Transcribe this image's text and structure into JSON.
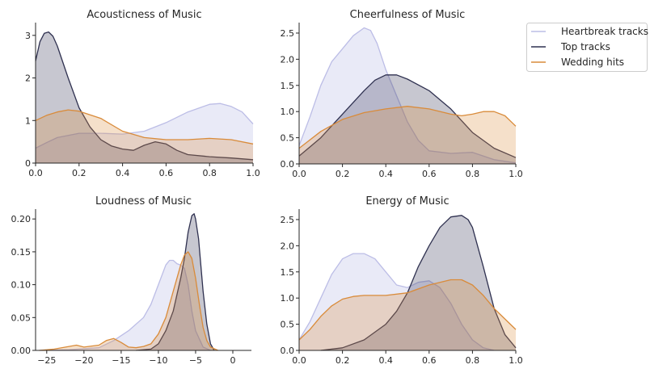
{
  "colors": {
    "heartbreak": "#bcbde6",
    "top": "#2f3150",
    "wedding": "#d98b3a"
  },
  "legend": {
    "position": "top-right",
    "entries": [
      {
        "name": "Heartbreak tracks",
        "color": "#bcbde6"
      },
      {
        "name": "Top tracks",
        "color": "#2f3150"
      },
      {
        "name": "Wedding hits",
        "color": "#d98b3a"
      }
    ]
  },
  "chart_data": [
    {
      "type": "area",
      "title": "Acousticness of Music",
      "xlabel": "",
      "ylabel": "",
      "xlim": [
        0,
        1
      ],
      "ylim": [
        0,
        3.3
      ],
      "xticks": [
        0.0,
        0.2,
        0.4,
        0.6,
        0.8,
        1.0
      ],
      "xtick_labels": [
        "0.0",
        "0.2",
        "0.4",
        "0.6",
        "0.8",
        "1.0"
      ],
      "yticks": [
        0,
        1,
        2,
        3
      ],
      "ytick_labels": [
        "0",
        "1",
        "2",
        "3"
      ],
      "grid": false,
      "series": [
        {
          "name": "Heartbreak tracks",
          "x": [
            0,
            0.05,
            0.1,
            0.2,
            0.3,
            0.4,
            0.5,
            0.6,
            0.7,
            0.8,
            0.85,
            0.9,
            0.95,
            1.0
          ],
          "y": [
            0.35,
            0.48,
            0.6,
            0.7,
            0.7,
            0.68,
            0.75,
            0.95,
            1.2,
            1.38,
            1.4,
            1.33,
            1.2,
            0.92
          ]
        },
        {
          "name": "Top tracks",
          "x": [
            0,
            0.02,
            0.04,
            0.06,
            0.08,
            0.1,
            0.15,
            0.2,
            0.25,
            0.3,
            0.35,
            0.4,
            0.45,
            0.5,
            0.55,
            0.6,
            0.65,
            0.7,
            0.8,
            0.9,
            1.0
          ],
          "y": [
            2.4,
            2.85,
            3.05,
            3.08,
            2.98,
            2.75,
            2.0,
            1.3,
            0.85,
            0.55,
            0.4,
            0.33,
            0.3,
            0.42,
            0.5,
            0.45,
            0.3,
            0.2,
            0.15,
            0.12,
            0.08
          ]
        },
        {
          "name": "Wedding hits",
          "x": [
            0,
            0.05,
            0.1,
            0.15,
            0.2,
            0.3,
            0.4,
            0.5,
            0.6,
            0.7,
            0.8,
            0.9,
            1.0
          ],
          "y": [
            1.0,
            1.12,
            1.2,
            1.25,
            1.22,
            1.05,
            0.75,
            0.6,
            0.55,
            0.55,
            0.58,
            0.55,
            0.45
          ]
        }
      ]
    },
    {
      "type": "area",
      "title": "Cheerfulness of Music",
      "xlabel": "",
      "ylabel": "",
      "xlim": [
        0,
        1
      ],
      "ylim": [
        0,
        2.7
      ],
      "xticks": [
        0.0,
        0.2,
        0.4,
        0.6,
        0.8,
        1.0
      ],
      "xtick_labels": [
        "0.0",
        "0.2",
        "0.4",
        "0.6",
        "0.8",
        "1.0"
      ],
      "yticks": [
        0,
        0.5,
        1.0,
        1.5,
        2.0,
        2.5
      ],
      "ytick_labels": [
        "0.0",
        "0.5",
        "1.0",
        "1.5",
        "2.0",
        "2.5"
      ],
      "grid": false,
      "series": [
        {
          "name": "Heartbreak tracks",
          "x": [
            0,
            0.05,
            0.1,
            0.15,
            0.2,
            0.25,
            0.3,
            0.33,
            0.36,
            0.4,
            0.45,
            0.5,
            0.55,
            0.6,
            0.7,
            0.8,
            0.9,
            1.0
          ],
          "y": [
            0.35,
            0.9,
            1.5,
            1.95,
            2.2,
            2.45,
            2.6,
            2.55,
            2.3,
            1.8,
            1.3,
            0.8,
            0.45,
            0.25,
            0.2,
            0.22,
            0.08,
            0.02
          ]
        },
        {
          "name": "Top tracks",
          "x": [
            0,
            0.1,
            0.2,
            0.3,
            0.35,
            0.4,
            0.45,
            0.5,
            0.6,
            0.7,
            0.8,
            0.9,
            1.0
          ],
          "y": [
            0.15,
            0.5,
            0.95,
            1.4,
            1.6,
            1.7,
            1.7,
            1.62,
            1.4,
            1.05,
            0.6,
            0.3,
            0.12
          ]
        },
        {
          "name": "Wedding hits",
          "x": [
            0,
            0.1,
            0.2,
            0.3,
            0.4,
            0.5,
            0.6,
            0.7,
            0.75,
            0.8,
            0.85,
            0.9,
            0.95,
            1.0
          ],
          "y": [
            0.3,
            0.62,
            0.85,
            0.98,
            1.05,
            1.1,
            1.05,
            0.95,
            0.92,
            0.95,
            1.0,
            1.0,
            0.92,
            0.72
          ]
        }
      ]
    },
    {
      "type": "area",
      "title": "Loudness of Music",
      "xlabel": "",
      "ylabel": "",
      "xlim": [
        -26.5,
        2.5
      ],
      "ylim": [
        0,
        0.215
      ],
      "xticks": [
        -25,
        -20,
        -15,
        -10,
        -5,
        0
      ],
      "xtick_labels": [
        "−25",
        "−20",
        "−15",
        "−10",
        "−5",
        "0"
      ],
      "yticks": [
        0,
        0.05,
        0.1,
        0.15,
        0.2
      ],
      "ytick_labels": [
        "0.00",
        "0.05",
        "0.10",
        "0.15",
        "0.20"
      ],
      "grid": false,
      "series": [
        {
          "name": "Heartbreak tracks",
          "x": [
            -26,
            -22,
            -18,
            -16,
            -14,
            -12,
            -11,
            -10,
            -9,
            -8.5,
            -8,
            -7.5,
            -7,
            -6.5,
            -6,
            -5.5,
            -5,
            -4,
            -3
          ],
          "y": [
            0,
            0.001,
            0.004,
            0.015,
            0.03,
            0.05,
            0.07,
            0.1,
            0.13,
            0.137,
            0.137,
            0.132,
            0.13,
            0.125,
            0.1,
            0.06,
            0.03,
            0.005,
            0
          ]
        },
        {
          "name": "Top tracks",
          "x": [
            -13,
            -11,
            -10,
            -9,
            -8,
            -7,
            -6.5,
            -6,
            -5.5,
            -5.2,
            -5,
            -4.6,
            -4.3,
            -4,
            -3.5,
            -3,
            -2.5
          ],
          "y": [
            0,
            0.002,
            0.01,
            0.03,
            0.06,
            0.11,
            0.14,
            0.18,
            0.205,
            0.208,
            0.2,
            0.17,
            0.13,
            0.09,
            0.04,
            0.01,
            0
          ]
        },
        {
          "name": "Wedding hits",
          "x": [
            -26,
            -24,
            -22,
            -21,
            -20,
            -18,
            -17,
            -16,
            -15,
            -14,
            -13,
            -12,
            -11,
            -10,
            -9,
            -8,
            -7,
            -6.5,
            -6,
            -5.5,
            -5,
            -4.5,
            -4,
            -3.5,
            -3,
            -2
          ],
          "y": [
            0,
            0.002,
            0.006,
            0.008,
            0.005,
            0.008,
            0.015,
            0.018,
            0.012,
            0.005,
            0.004,
            0.006,
            0.01,
            0.025,
            0.05,
            0.09,
            0.13,
            0.145,
            0.15,
            0.14,
            0.11,
            0.07,
            0.035,
            0.015,
            0.005,
            0
          ]
        }
      ]
    },
    {
      "type": "area",
      "title": "Energy of Music",
      "xlabel": "",
      "ylabel": "",
      "xlim": [
        0,
        1
      ],
      "ylim": [
        0,
        2.7
      ],
      "xticks": [
        0.0,
        0.2,
        0.4,
        0.6,
        0.8,
        1.0
      ],
      "xtick_labels": [
        "0.0",
        "0.2",
        "0.4",
        "0.6",
        "0.8",
        "1.0"
      ],
      "yticks": [
        0,
        0.5,
        1.0,
        1.5,
        2.0,
        2.5
      ],
      "ytick_labels": [
        "0.0",
        "0.5",
        "1.0",
        "1.5",
        "2.0",
        "2.5"
      ],
      "grid": false,
      "series": [
        {
          "name": "Heartbreak tracks",
          "x": [
            0,
            0.05,
            0.1,
            0.15,
            0.2,
            0.25,
            0.3,
            0.35,
            0.4,
            0.45,
            0.5,
            0.55,
            0.6,
            0.65,
            0.7,
            0.75,
            0.8,
            0.85,
            0.9
          ],
          "y": [
            0.2,
            0.55,
            1.0,
            1.45,
            1.75,
            1.85,
            1.85,
            1.75,
            1.5,
            1.25,
            1.2,
            1.3,
            1.33,
            1.2,
            0.9,
            0.5,
            0.2,
            0.05,
            0
          ]
        },
        {
          "name": "Top tracks",
          "x": [
            0.1,
            0.2,
            0.3,
            0.4,
            0.45,
            0.5,
            0.55,
            0.6,
            0.65,
            0.7,
            0.75,
            0.78,
            0.8,
            0.85,
            0.9,
            0.95,
            1.0
          ],
          "y": [
            0,
            0.05,
            0.2,
            0.5,
            0.75,
            1.1,
            1.6,
            2.0,
            2.35,
            2.55,
            2.58,
            2.5,
            2.35,
            1.6,
            0.8,
            0.3,
            0.05
          ]
        },
        {
          "name": "Wedding hits",
          "x": [
            0,
            0.05,
            0.1,
            0.15,
            0.2,
            0.25,
            0.3,
            0.4,
            0.5,
            0.6,
            0.7,
            0.75,
            0.8,
            0.85,
            0.9,
            0.95,
            1.0
          ],
          "y": [
            0.2,
            0.4,
            0.65,
            0.85,
            0.98,
            1.03,
            1.05,
            1.05,
            1.1,
            1.25,
            1.35,
            1.35,
            1.25,
            1.05,
            0.8,
            0.6,
            0.4
          ]
        }
      ]
    }
  ]
}
